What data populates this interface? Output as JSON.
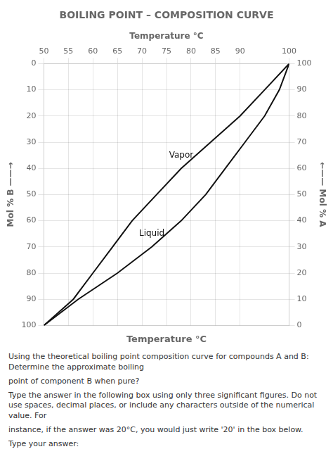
{
  "chart_data": {
    "type": "line",
    "title": "BOILING POINT – COMPOSITION CURVE",
    "xlabel": "Temperature °C",
    "xlabel_bottom": "Temperature °C",
    "ylabel": "Mol % B ——→",
    "y2label": "←—— Mol % A",
    "xlim": [
      50,
      100
    ],
    "xticks": [
      50,
      55,
      60,
      65,
      70,
      75,
      80,
      85,
      90,
      100
    ],
    "ylim": [
      100,
      0
    ],
    "yticks": [
      0,
      10,
      20,
      30,
      40,
      50,
      60,
      70,
      80,
      90,
      100
    ],
    "y2lim": [
      0,
      100
    ],
    "y2ticks": [
      100,
      90,
      80,
      70,
      60,
      50,
      40,
      30,
      20,
      10,
      0
    ],
    "grid": true,
    "series": [
      {
        "color": "#111111",
        "x": [
          100,
          98,
          95,
          91,
          87,
          83,
          78,
          72,
          65,
          57,
          50
        ],
        "values": [
          0,
          10,
          20,
          30,
          40,
          50,
          60,
          70,
          80,
          90,
          100
        ]
      },
      {
        "color": "#111111",
        "x": [
          100,
          95,
          90,
          84,
          78,
          73,
          68,
          64,
          60,
          56,
          50
        ],
        "values": [
          0,
          10,
          20,
          30,
          40,
          50,
          60,
          70,
          80,
          90,
          100
        ]
      }
    ],
    "annotations": [
      {
        "text": "Liquid",
        "x": 72,
        "y": 65,
        "color": "#111111"
      },
      {
        "text": "Vapor",
        "x": 78,
        "y": 35,
        "color": "#111111"
      }
    ],
    "question_text": [
      "Using the theoretical boiling point composition curve for compounds A and B: Determine the approximate boiling",
      "point of component B when pure?",
      "Type the answer in the following box using only three significant figures. Do not use spaces, decimal places, or include any characters outside of the numerical value. For",
      "instance, if the answer was 20°C, you would just write '20' in the box below.",
      "Type your answer:"
    ]
  }
}
